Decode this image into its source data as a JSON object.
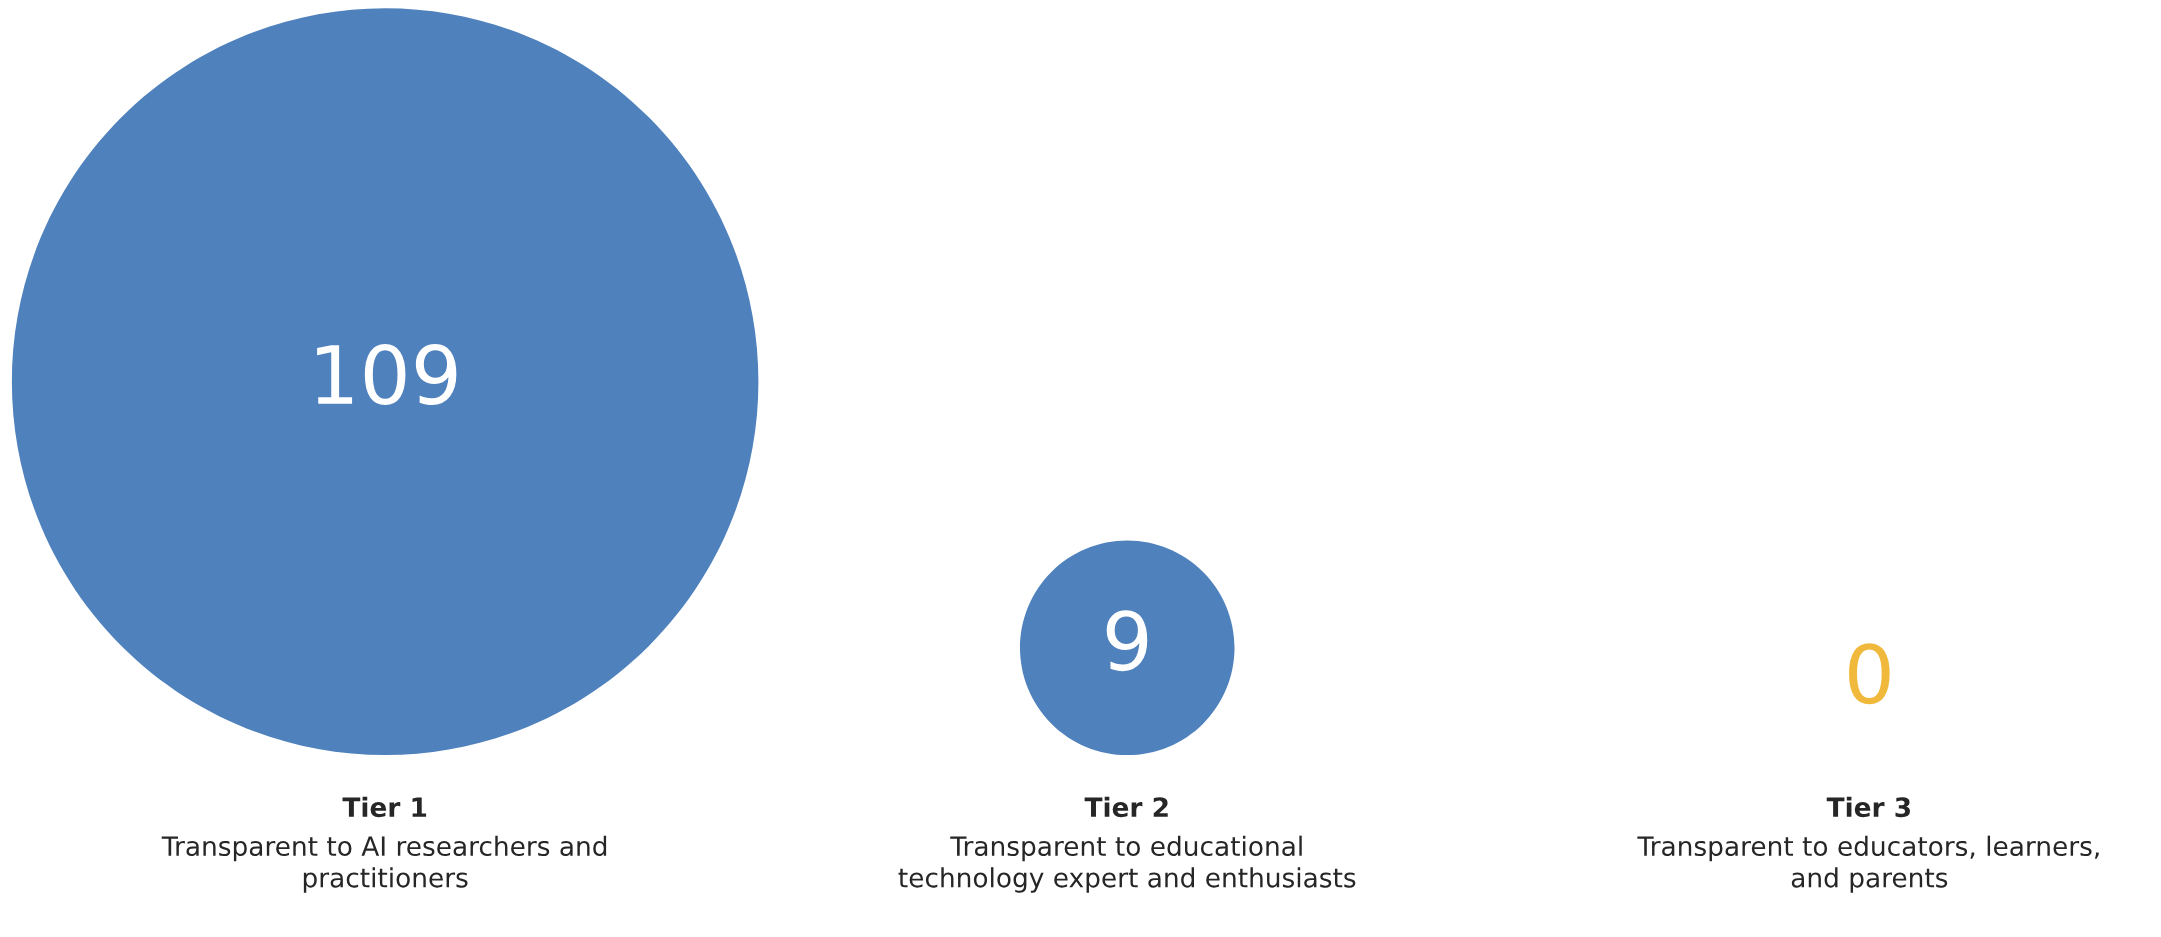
{
  "chart_data": {
    "type": "other",
    "categories": [
      "Tier 1\nTransparent to AI researchers and\npractitioners",
      "Tier 2\nTransparent to educational\ntechnology expert and enthusiasts",
      "Tier 3\nTransparent to educators, learners,\nand parents"
    ],
    "values": [
      109,
      9,
      0
    ],
    "colors": [
      "#4f81bd",
      "#4f81bd",
      "#f0b93b"
    ],
    "data_labels": true
  }
}
